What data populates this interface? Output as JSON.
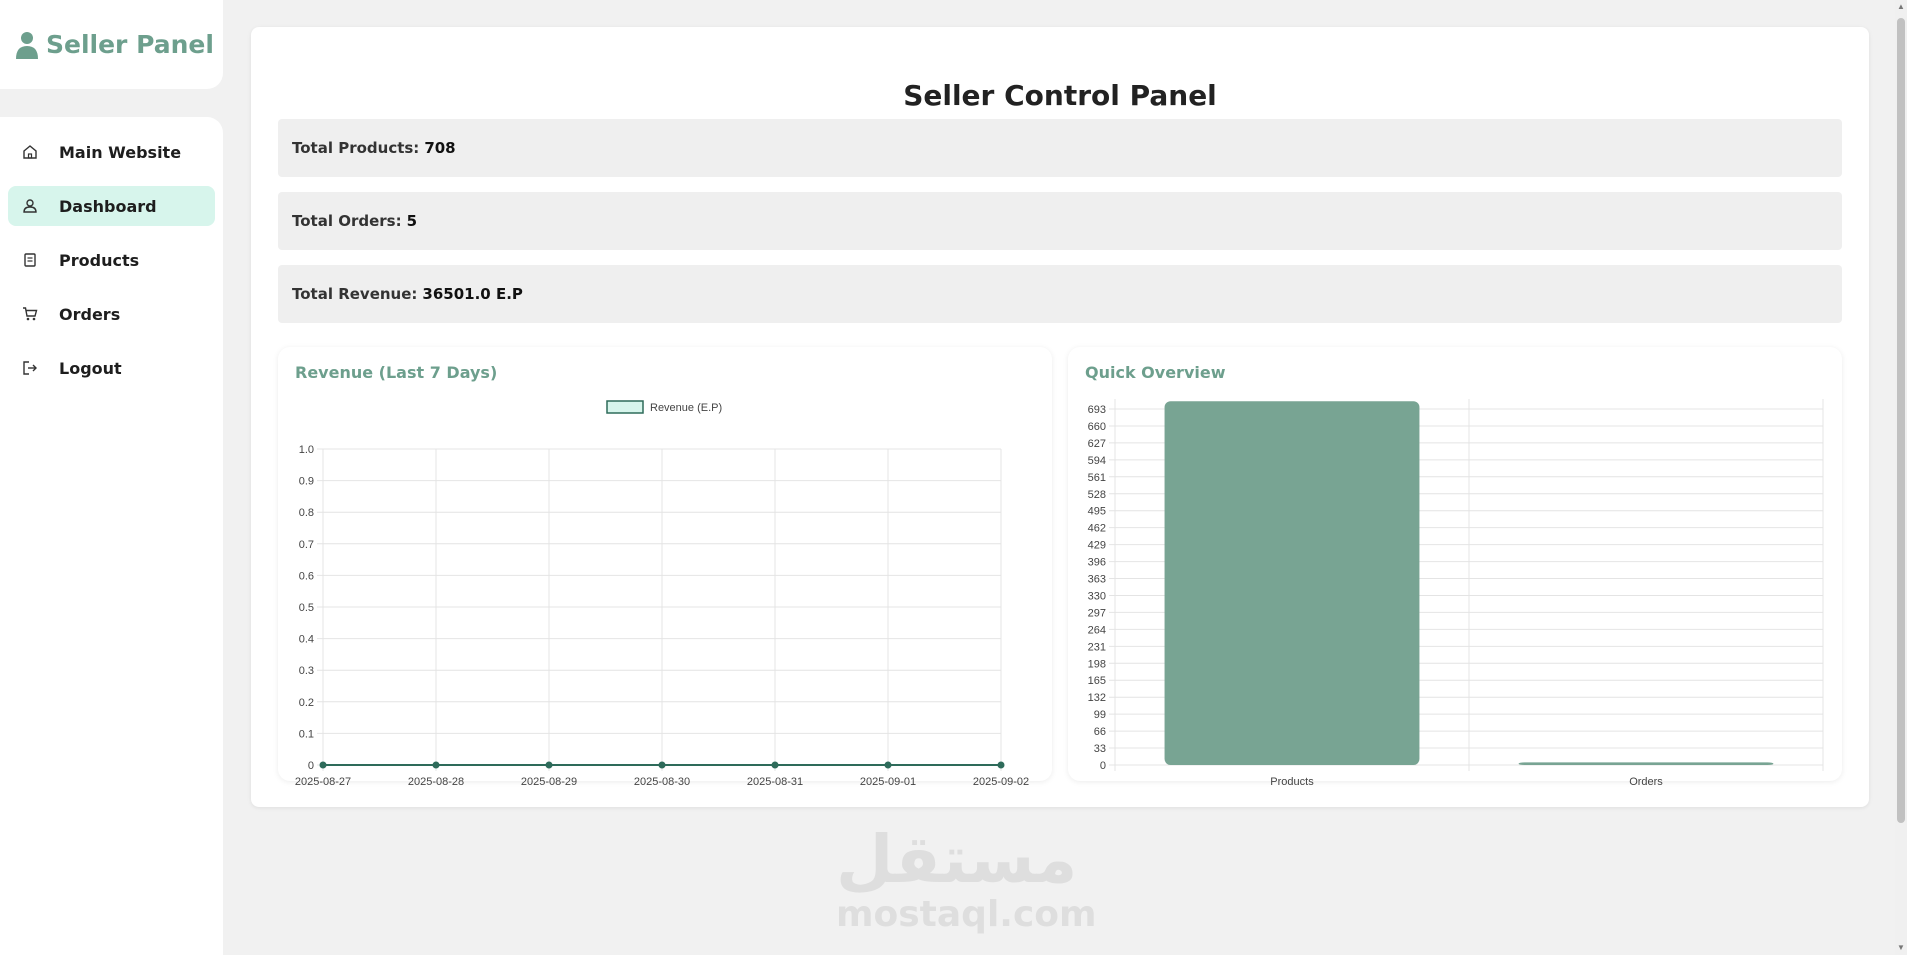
{
  "sidebar": {
    "brand": "Seller Panel",
    "brand_icon": "user-icon",
    "items": [
      {
        "label": "Main Website",
        "icon": "home-icon"
      },
      {
        "label": "Dashboard",
        "icon": "user-icon",
        "active": true
      },
      {
        "label": "Products",
        "icon": "box-icon"
      },
      {
        "label": "Orders",
        "icon": "cart-icon"
      },
      {
        "label": "Logout",
        "icon": "logout-icon"
      }
    ]
  },
  "main": {
    "title": "Seller Control Panel",
    "stats": [
      {
        "label": "Total Products:",
        "value": "708"
      },
      {
        "label": "Total Orders:",
        "value": "5"
      },
      {
        "label": "Total Revenue:",
        "value": "36501.0 E.P"
      }
    ]
  },
  "colors": {
    "accent": "#6d9f8d",
    "active_bg": "#d7f5ec",
    "line": "#2e6b5a",
    "bar": "#78a493"
  },
  "watermark": {
    "arabic": "مستقل",
    "latin": "mostaql.com"
  },
  "chart_data": [
    {
      "type": "line",
      "title": "Revenue (Last 7 Days)",
      "legend": [
        "Revenue (E.P)"
      ],
      "legend_placement": "top",
      "x": [
        "2025-08-27",
        "2025-08-28",
        "2025-08-29",
        "2025-08-30",
        "2025-08-31",
        "2025-09-01",
        "2025-09-02"
      ],
      "series": [
        {
          "name": "Revenue (E.P)",
          "values": [
            0,
            0,
            0,
            0,
            0,
            0,
            0
          ]
        }
      ],
      "ylim": [
        0,
        1
      ],
      "yticks": [
        "0",
        "0.1",
        "0.2",
        "0.3",
        "0.4",
        "0.5",
        "0.6",
        "0.7",
        "0.8",
        "0.9",
        "1.0"
      ],
      "grid": true
    },
    {
      "type": "bar",
      "title": "Quick Overview",
      "categories": [
        "Products",
        "Orders"
      ],
      "values": [
        708,
        5
      ],
      "ylim": [
        0,
        708
      ],
      "yticks": [
        "0",
        "33",
        "66",
        "99",
        "132",
        "165",
        "198",
        "231",
        "264",
        "297",
        "330",
        "363",
        "396",
        "429",
        "462",
        "495",
        "528",
        "561",
        "594",
        "627",
        "660",
        "693"
      ],
      "grid": true
    }
  ]
}
